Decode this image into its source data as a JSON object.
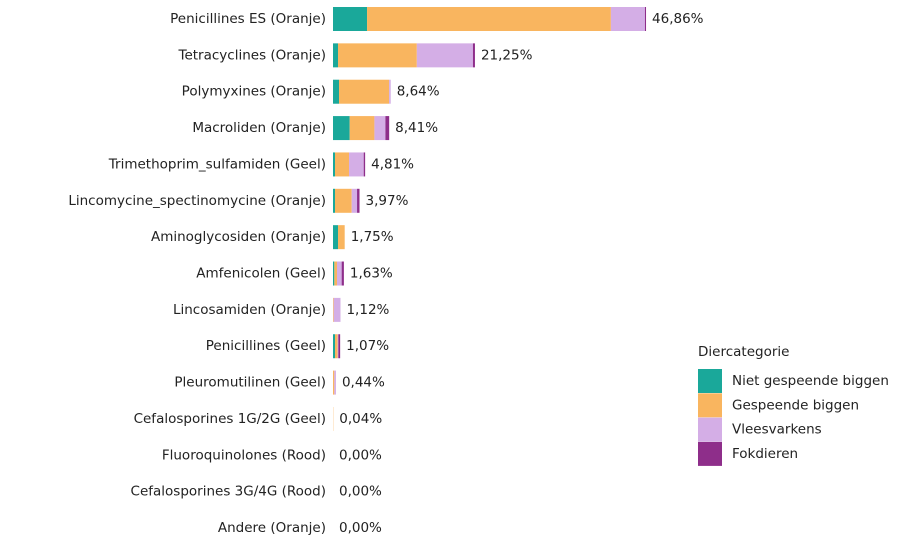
{
  "chart_data": {
    "type": "stacked-bar-horizontal",
    "categories": [
      "Penicillines ES (Oranje)",
      "Tetracyclines (Oranje)",
      "Polymyxines (Oranje)",
      "Macroliden (Oranje)",
      "Trimethoprim_sulfamiden (Geel)",
      "Lincomycine_spectinomycine (Oranje)",
      "Aminoglycosiden (Oranje)",
      "Amfenicolen (Geel)",
      "Lincosamiden (Oranje)",
      "Penicillines (Geel)",
      "Pleuromutilinen (Geel)",
      "Cefalosporines 1G/2G (Geel)",
      "Fluoroquinolones (Rood)",
      "Cefalosporines 3G/4G (Rood)",
      "Andere (Oranje)"
    ],
    "series": [
      {
        "name": "Niet gespeende biggen",
        "color": "#1aa89a",
        "values": [
          5.1,
          0.75,
          0.9,
          2.5,
          0.3,
          0.3,
          0.75,
          0.2,
          0,
          0.3,
          0,
          0,
          0,
          0,
          0
        ]
      },
      {
        "name": "Gespeende biggen",
        "color": "#f9b55f",
        "values": [
          36.5,
          11.8,
          7.5,
          3.7,
          2.1,
          2.5,
          1.0,
          0.4,
          0.1,
          0.4,
          0.2,
          0.04,
          0,
          0,
          0
        ]
      },
      {
        "name": "Vleesvarkens",
        "color": "#d4aee6",
        "values": [
          5.1,
          8.4,
          0.24,
          1.65,
          2.2,
          0.8,
          0,
          0.7,
          1.02,
          0.1,
          0.24,
          0,
          0,
          0,
          0
        ]
      },
      {
        "name": "Fokdieren",
        "color": "#8e2e8a",
        "values": [
          0.16,
          0.3,
          0,
          0.56,
          0.21,
          0.37,
          0,
          0.33,
          0,
          0.27,
          0,
          0,
          0,
          0,
          0
        ]
      }
    ],
    "totals": [
      46.86,
      21.25,
      8.64,
      8.41,
      4.81,
      3.97,
      1.75,
      1.63,
      1.12,
      1.07,
      0.44,
      0.04,
      0,
      0,
      0
    ],
    "total_labels": [
      "46,86%",
      "21,25%",
      "8,64%",
      "8,41%",
      "4,81%",
      "3,97%",
      "1,75%",
      "1,63%",
      "1,12%",
      "1,07%",
      "0,44%",
      "0,04%",
      "0,00%",
      "0,00%",
      "0,00%"
    ],
    "xlim": [
      0,
      50
    ],
    "legend_title": "Diercategorie",
    "legend": "right"
  }
}
